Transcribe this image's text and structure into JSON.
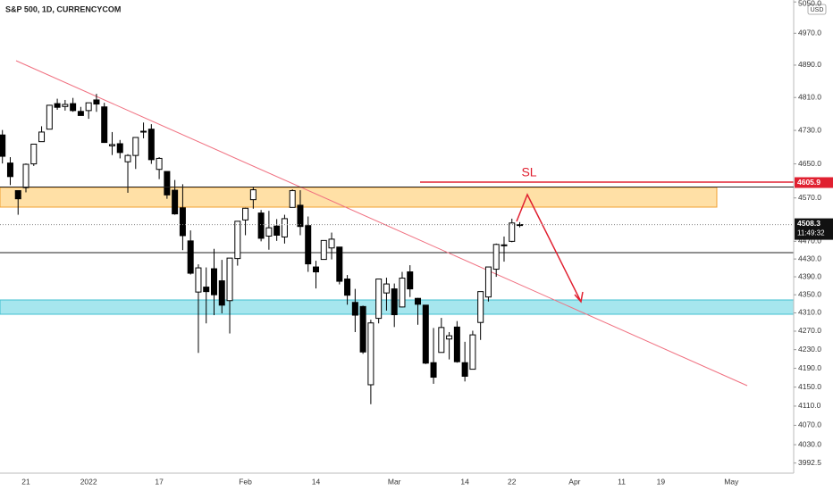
{
  "chart_data": {
    "type": "candlestick",
    "title": "S&P 500, 1D, CURRENCYCOM",
    "currency": "USD",
    "log_scale": true,
    "grid": false,
    "up_color": "#ffffff",
    "down_color": "#000000",
    "categories": [
      null,
      null,
      null,
      "21",
      null,
      null,
      null,
      null,
      null,
      null,
      null,
      "2022",
      null,
      null,
      null,
      null,
      null,
      null,
      null,
      null,
      "17",
      null,
      null,
      null,
      null,
      null,
      null,
      null,
      null,
      null,
      null,
      "Feb",
      null,
      null,
      null,
      null,
      null,
      null,
      null,
      null,
      "14",
      null,
      null,
      null,
      null,
      null,
      null,
      null,
      null,
      null,
      "Mar",
      null,
      null,
      null,
      null,
      null,
      null,
      null,
      null,
      "14",
      null,
      null,
      null,
      null,
      null,
      "22",
      null,
      null,
      null,
      null,
      null,
      null,
      null,
      "Apr",
      null,
      null,
      null,
      null,
      null,
      "11",
      null,
      null,
      null,
      null,
      "19",
      null,
      null,
      null,
      null,
      null,
      null,
      null,
      null,
      "May",
      null,
      null,
      null,
      null,
      null,
      null,
      null
    ],
    "open": [
      4719,
      4652,
      4587,
      4594,
      4650,
      4703,
      4733,
      4795,
      4788,
      4795,
      4776,
      4778,
      4804,
      4787,
      4693,
      4698,
      4655,
      4670,
      4728,
      4733,
      4637,
      4632,
      4588,
      4547,
      4471,
      4356,
      4367,
      4408,
      4381,
      4337,
      4431,
      4519,
      4566,
      4535,
      4482,
      4505,
      4480,
      4548,
      4553,
      4506,
      4412,
      4429,
      4455,
      4457,
      4385,
      4333,
      4324,
      4155,
      4298,
      4354,
      4363,
      4323,
      4401,
      4342,
      4327,
      4202,
      4224,
      4253,
      4279,
      4202,
      4188,
      4289,
      4345,
      4407,
      4462,
      4470,
      4507,
      null,
      null,
      null,
      null,
      null,
      null,
      null,
      null,
      null,
      null,
      null,
      null,
      null,
      null,
      null,
      null,
      null,
      null,
      null,
      null,
      null,
      null,
      null,
      null,
      null,
      null,
      null,
      null,
      null,
      null,
      null,
      null,
      null,
      null
    ],
    "high": [
      4731,
      4666,
      4587,
      4651,
      4697,
      4740,
      4792,
      4807,
      4804,
      4809,
      4787,
      4797,
      4819,
      4797,
      4726,
      4707,
      4673,
      4714,
      4749,
      4745,
      4666,
      4632,
      4612,
      4602,
      4495,
      4418,
      4411,
      4453,
      4428,
      4432,
      4516,
      4547,
      4595,
      4542,
      4540,
      4521,
      4531,
      4590,
      4588,
      4527,
      4426,
      4472,
      4490,
      4457,
      4394,
      4363,
      4326,
      4295,
      4385,
      4388,
      4375,
      4401,
      4416,
      4343,
      4327,
      4277,
      4299,
      4268,
      4292,
      4247,
      4271,
      4357,
      4412,
      4465,
      4481,
      4522,
      4514,
      null,
      null,
      null,
      null,
      null,
      null,
      null,
      null,
      null,
      null,
      null,
      null,
      null,
      null,
      null,
      null,
      null,
      null,
      null,
      null,
      null,
      null,
      null,
      null,
      null,
      null,
      null,
      null,
      null,
      null,
      null,
      null,
      null,
      null
    ],
    "low": [
      4651,
      4600,
      4531,
      4583,
      4645,
      4703,
      4733,
      4780,
      4778,
      4775,
      4766,
      4758,
      4775,
      4700,
      4671,
      4663,
      4582,
      4638,
      4711,
      4650,
      4614,
      4568,
      4531,
      4450,
      4395,
      4223,
      4287,
      4305,
      4309,
      4265,
      4415,
      4484,
      4545,
      4470,
      4451,
      4471,
      4465,
      4548,
      4484,
      4401,
      4364,
      4429,
      4429,
      4373,
      4328,
      4268,
      4221,
      4114,
      4287,
      4315,
      4279,
      4322,
      4345,
      4284,
      4199,
      4157,
      4224,
      4209,
      4202,
      4162,
      4188,
      4251,
      4335,
      4390,
      4424,
      4468,
      4502,
      null,
      null,
      null,
      null,
      null,
      null,
      null,
      null,
      null,
      null,
      null,
      null,
      null,
      null,
      null,
      null,
      null,
      null,
      null,
      null,
      null,
      null,
      null,
      null,
      null,
      null,
      null,
      null,
      null,
      null,
      null,
      null,
      null,
      null
    ],
    "close": [
      4668,
      4620,
      4568,
      4649,
      4697,
      4726,
      4791,
      4786,
      4793,
      4778,
      4766,
      4797,
      4794,
      4701,
      4696,
      4677,
      4670,
      4713,
      4726,
      4660,
      4663,
      4577,
      4533,
      4483,
      4398,
      4410,
      4357,
      4350,
      4327,
      4432,
      4516,
      4546,
      4589,
      4477,
      4501,
      4484,
      4522,
      4587,
      4504,
      4419,
      4401,
      4472,
      4475,
      4380,
      4349,
      4305,
      4225,
      4288,
      4385,
      4374,
      4306,
      4387,
      4363,
      4329,
      4201,
      4171,
      4278,
      4260,
      4204,
      4173,
      4262,
      4357,
      4412,
      4463,
      4461,
      4512,
      4508.3,
      null,
      null,
      null,
      null,
      null,
      null,
      null,
      null,
      null,
      null,
      null,
      null,
      null,
      null,
      null,
      null,
      null,
      null,
      null,
      null,
      null,
      null,
      null,
      null,
      null,
      null,
      null,
      null,
      null,
      null,
      null,
      null,
      null,
      null
    ],
    "countdown": "11:49:32",
    "level_label": 4605.9,
    "sl_label": "SL",
    "ylim": [
      3972,
      5055
    ],
    "yticks": [
      {
        "value": 3992.5,
        "label": "3992.5"
      },
      {
        "value": 4030,
        "label": "4030.0"
      },
      {
        "value": 4070,
        "label": "4070.0"
      },
      {
        "value": 4110,
        "label": "4110.0"
      },
      {
        "value": 4150,
        "label": "4150.0"
      },
      {
        "value": 4190,
        "label": "4190.0"
      },
      {
        "value": 4230,
        "label": "4230.0"
      },
      {
        "value": 4270,
        "label": "4270.0"
      },
      {
        "value": 4310,
        "label": "4310.0"
      },
      {
        "value": 4350,
        "label": "4350.0"
      },
      {
        "value": 4390,
        "label": "4390.0"
      },
      {
        "value": 4430,
        "label": "4430.0"
      },
      {
        "value": 4470,
        "label": "4470.0"
      },
      {
        "value": 4570,
        "label": "4570.0"
      },
      {
        "value": 4650,
        "label": "4650.0"
      },
      {
        "value": 4730,
        "label": "4730.0"
      },
      {
        "value": 4810,
        "label": "4810.0"
      },
      {
        "value": 4890,
        "label": "4890.0"
      },
      {
        "value": 4970,
        "label": "4970.0"
      },
      {
        "value": 5050,
        "label": "5050.0"
      }
    ]
  }
}
